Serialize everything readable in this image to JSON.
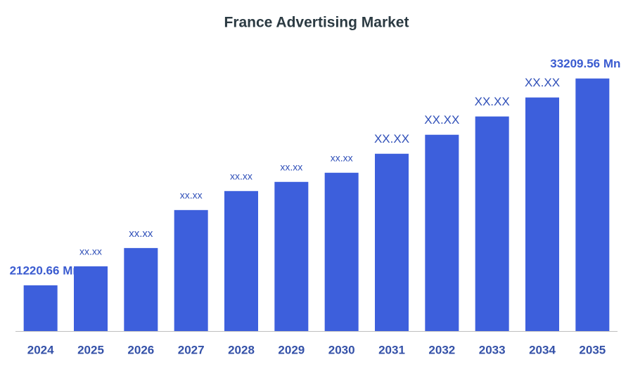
{
  "chart_data": {
    "type": "bar",
    "title": "France Advertising Market",
    "categories": [
      "2024",
      "2025",
      "2026",
      "2027",
      "2028",
      "2029",
      "2030",
      "2031",
      "2032",
      "2033",
      "2034",
      "2035"
    ],
    "values": [
      21220.66,
      22322,
      23382,
      25584,
      26685,
      27216,
      27746,
      28847,
      29948,
      31008,
      32109,
      33209.56
    ],
    "value_labels": [
      "21220.66 Mn",
      "xx.xx",
      "xx.xx",
      "xx.xx",
      "xx.xx",
      "xx.xx",
      "xx.xx",
      "XX.XX",
      "XX.XX",
      "XX.XX",
      "XX.XX",
      "33209.56 Mn"
    ],
    "color": "#3d5fdc",
    "ylim": [
      18570,
      34500
    ]
  }
}
